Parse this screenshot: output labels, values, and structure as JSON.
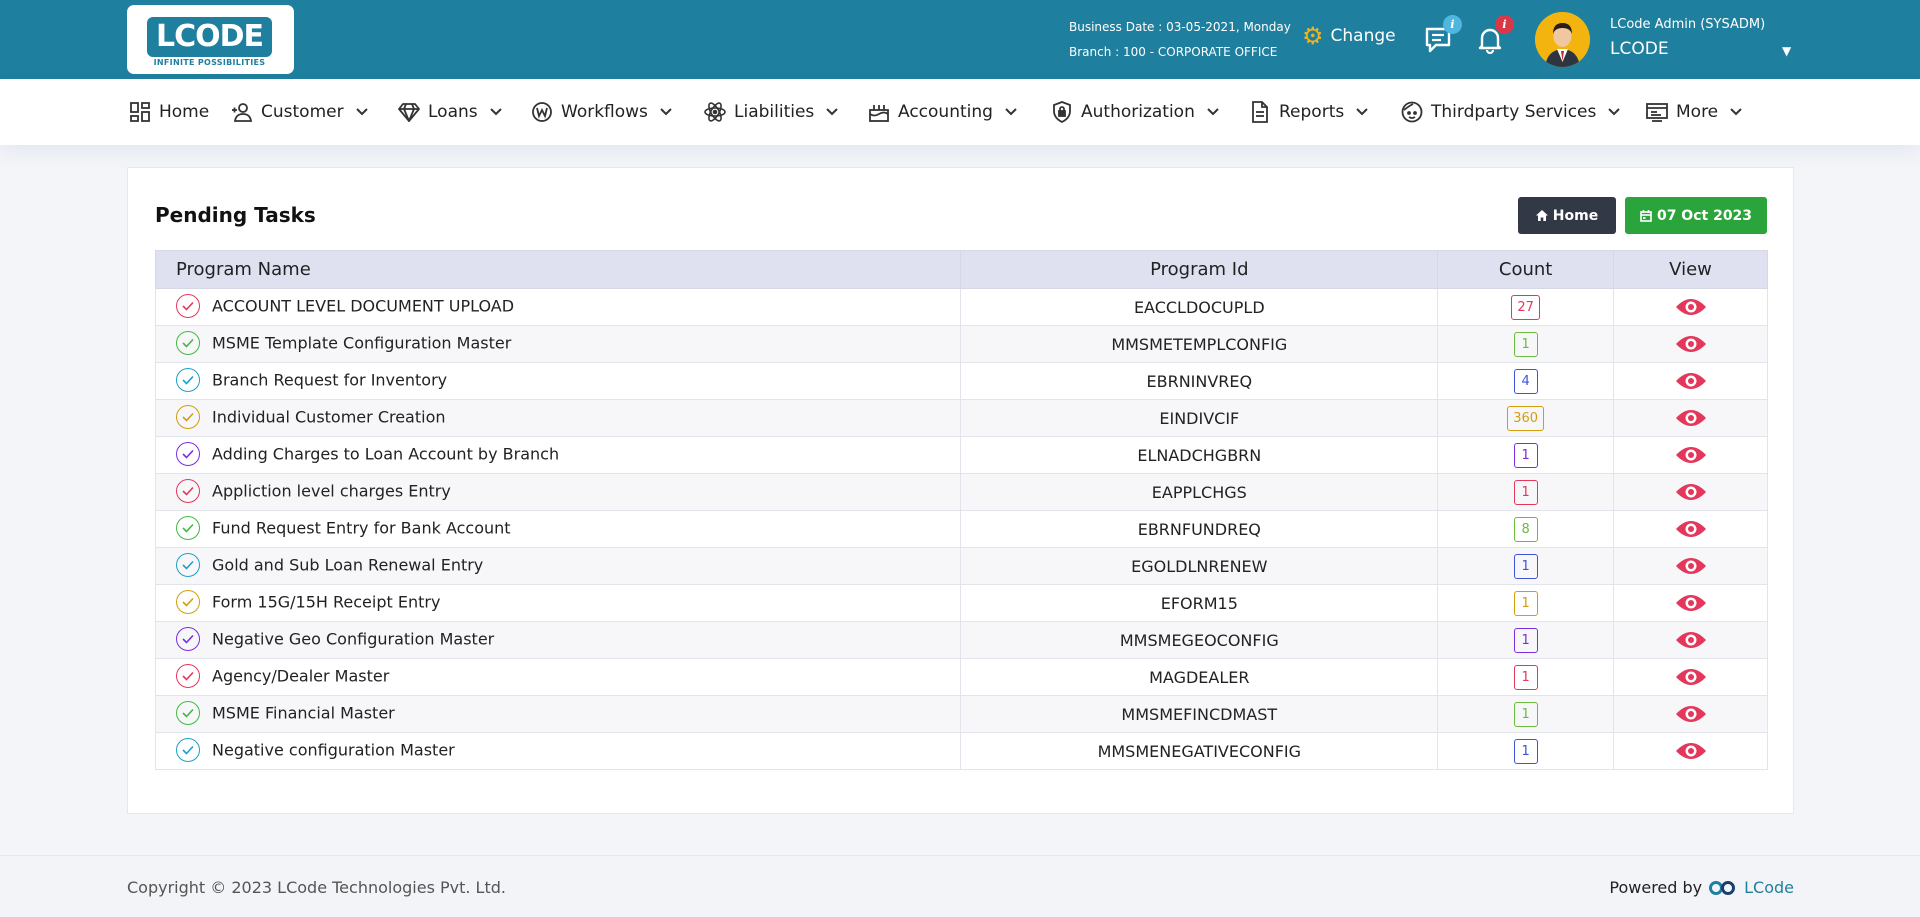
{
  "header": {
    "logo_text": "LCODE",
    "logo_tagline": "INFINITE POSSIBILITIES",
    "business_date": "Business Date : 03-05-2021, Monday",
    "branch": "Branch : 100 - CORPORATE OFFICE",
    "change_label": "Change",
    "messages_badge": "i",
    "notifications_badge": "i",
    "user_role": "LCode Admin (SYSADM)",
    "user_name": "LCODE",
    "colors": {
      "header_bg": "#1f7f9e",
      "gear": "#f6b319",
      "msg_badge": "#4fb7df",
      "notif_badge": "#d93848"
    }
  },
  "nav": [
    {
      "label": "Home",
      "icon": "dashboard-icon"
    },
    {
      "label": "Customer",
      "icon": "user-add-icon"
    },
    {
      "label": "Loans",
      "icon": "diamond-icon"
    },
    {
      "label": "Workflows",
      "icon": "workflow-icon"
    },
    {
      "label": "Liabilities",
      "icon": "atom-icon"
    },
    {
      "label": "Accounting",
      "icon": "cake-icon"
    },
    {
      "label": "Authorization",
      "icon": "shield-lock-icon"
    },
    {
      "label": "Reports",
      "icon": "document-icon"
    },
    {
      "label": "Thirdparty Services",
      "icon": "face-icon"
    },
    {
      "label": "More",
      "icon": "more-icon"
    }
  ],
  "main": {
    "title": "Pending Tasks",
    "home_button": "Home",
    "date_button": "07 Oct 2023",
    "columns": [
      "Program Name",
      "Program Id",
      "Count",
      "View"
    ],
    "rows": [
      {
        "name": "ACCOUNT LEVEL DOCUMENT UPLOAD",
        "id": "EACCLDOCUPLD",
        "count": "27",
        "color": "#e3385b"
      },
      {
        "name": "MSME Template Configuration Master",
        "id": "MMSMETEMPLCONFIG",
        "count": "1",
        "color": "#42b844"
      },
      {
        "name": "Branch Request for Inventory",
        "id": "EBRNINVREQ",
        "count": "4",
        "color": "#1aa1c9"
      },
      {
        "name": "Individual Customer Creation",
        "id": "EINDIVCIF",
        "count": "360",
        "color": "#d39d0c"
      },
      {
        "name": "Adding Charges to Loan Account by Branch",
        "id": "ELNADCHGBRN",
        "count": "1",
        "color": "#7b2ee0"
      },
      {
        "name": "Appliction level charges Entry",
        "id": "EAPPLCHGS",
        "count": "1",
        "color": "#e3385b"
      },
      {
        "name": "Fund Request Entry for Bank Account",
        "id": "EBRNFUNDREQ",
        "count": "8",
        "color": "#42b844"
      },
      {
        "name": "Gold and Sub Loan Renewal Entry",
        "id": "EGOLDLNRENEW",
        "count": "1",
        "color": "#1aa1c9"
      },
      {
        "name": "Form 15G/15H Receipt Entry",
        "id": "EFORM15",
        "count": "1",
        "color": "#d39d0c"
      },
      {
        "name": "Negative Geo Configuration Master",
        "id": "MMSMEGEOCONFIG",
        "count": "1",
        "color": "#7b2ee0"
      },
      {
        "name": "Agency/Dealer Master",
        "id": "MAGDEALER",
        "count": "1",
        "color": "#e3385b"
      },
      {
        "name": "MSME Financial Master",
        "id": "MMSMEFINCDMAST",
        "count": "1",
        "color": "#42b844"
      },
      {
        "name": "Negative configuration Master",
        "id": "MMSMENEGATIVECONFIG",
        "count": "1",
        "color": "#1aa1c9"
      }
    ],
    "count_colors": [
      "#e3385b",
      "#6dbb3c",
      "#3c55d6",
      "#d39d0c",
      "#7b2ee0",
      "#e3385b",
      "#6dbb3c",
      "#3c55d6",
      "#d39d0c",
      "#7b2ee0",
      "#e3385b",
      "#6dbb3c",
      "#3c55d6"
    ],
    "eye_color": "#e3385b"
  },
  "footer": {
    "copyright": "Copyright © 2023 LCode Technologies Pvt. Ltd.",
    "powered_by": "Powered by",
    "brand": "LCode"
  }
}
